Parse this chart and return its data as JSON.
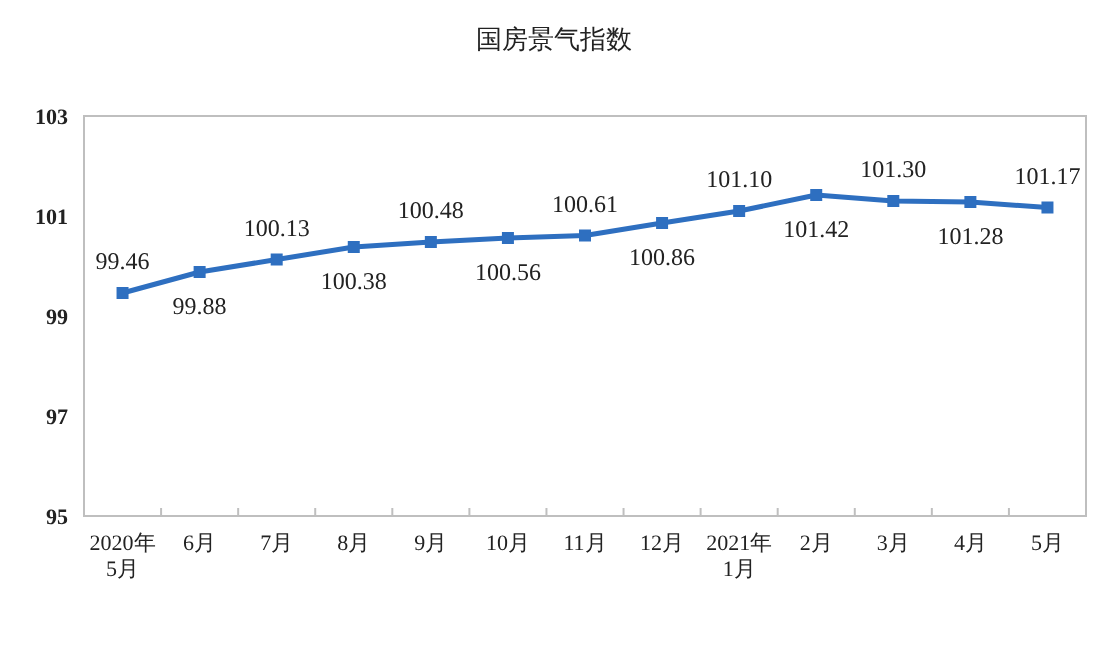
{
  "chart_data": {
    "type": "line",
    "title": "国房景气指数",
    "categories": [
      "2020年\n5月",
      "6月",
      "7月",
      "8月",
      "9月",
      "10月",
      "11月",
      "12月",
      "2021年\n1月",
      "2月",
      "3月",
      "4月",
      "5月"
    ],
    "series": [
      {
        "color": "#2e6fc0",
        "values": [
          99.46,
          99.88,
          100.13,
          100.38,
          100.48,
          100.56,
          100.61,
          100.86,
          101.1,
          101.42,
          101.3,
          101.28,
          101.17
        ],
        "value_labels": [
          "99.46",
          "99.88",
          "100.13",
          "100.38",
          "100.48",
          "100.56",
          "100.61",
          "100.86",
          "101.10",
          "101.42",
          "101.30",
          "101.28",
          "101.17"
        ]
      }
    ],
    "ylim": [
      95,
      103
    ],
    "yticks": [
      95,
      97,
      99,
      101,
      103
    ],
    "grid": false,
    "marker": "square",
    "line_style": "solid"
  }
}
